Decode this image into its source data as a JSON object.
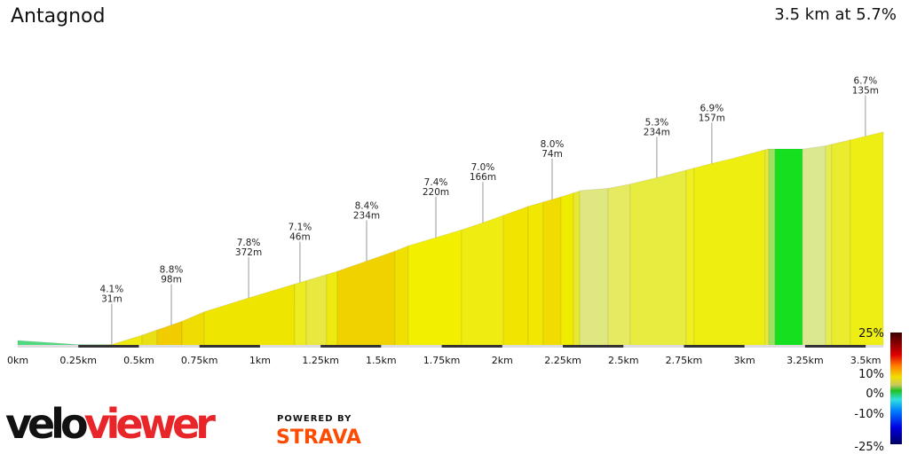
{
  "header": {
    "title": "Antagnod",
    "summary": "3.5 km at 5.7%"
  },
  "chart_data": {
    "type": "area",
    "xlabel": "",
    "ylabel": "",
    "xlim": [
      0,
      3.5
    ],
    "x_ticks": [
      "0km",
      "0.25km",
      "0.5km",
      "0.75km",
      "1km",
      "1.25km",
      "1.5km",
      "1.75km",
      "2km",
      "2.25km",
      "2.5km",
      "2.75km",
      "3km",
      "3.25km",
      "3.5km"
    ],
    "profile": [
      [
        0,
        5
      ],
      [
        0.257,
        1
      ],
      [
        0.385,
        1
      ],
      [
        0.513,
        10
      ],
      [
        0.678,
        23
      ],
      [
        0.77,
        32
      ],
      [
        0.953,
        45
      ],
      [
        1.143,
        58
      ],
      [
        1.319,
        70
      ],
      [
        1.557,
        89
      ],
      [
        1.612,
        94
      ],
      [
        1.832,
        109
      ],
      [
        1.924,
        116
      ],
      [
        2.107,
        131
      ],
      [
        2.243,
        140
      ],
      [
        2.327,
        146
      ],
      [
        2.437,
        148
      ],
      [
        2.528,
        152
      ],
      [
        2.638,
        158
      ],
      [
        2.792,
        167
      ],
      [
        2.858,
        171
      ],
      [
        2.95,
        176
      ],
      [
        3.096,
        185
      ],
      [
        3.243,
        185
      ],
      [
        3.335,
        188
      ],
      [
        3.445,
        194
      ],
      [
        3.573,
        201
      ]
    ],
    "segments": [
      [
        0,
        "#52d97f"
      ],
      [
        0.257,
        "#1db81d"
      ],
      [
        0.385,
        "#eeea10"
      ],
      [
        0.513,
        "#e8e015"
      ],
      [
        0.575,
        "#f0cc00"
      ],
      [
        0.678,
        "#efdc00"
      ],
      [
        0.77,
        "#eee500"
      ],
      [
        1.143,
        "#ecec20"
      ],
      [
        1.191,
        "#e8e840"
      ],
      [
        1.275,
        "#eeea10"
      ],
      [
        1.319,
        "#efd200"
      ],
      [
        1.557,
        "#efe000"
      ],
      [
        1.612,
        "#f2f000"
      ],
      [
        1.832,
        "#eeec10"
      ],
      [
        2.005,
        "#f0e400"
      ],
      [
        2.107,
        "#f0e800"
      ],
      [
        2.169,
        "#f0dc00"
      ],
      [
        2.243,
        "#f0ec00"
      ],
      [
        2.294,
        "#e8e830"
      ],
      [
        2.32,
        "#dfe880"
      ],
      [
        2.437,
        "#e6ea60"
      ],
      [
        2.528,
        "#e8ec40"
      ],
      [
        2.759,
        "#eeee20"
      ],
      [
        2.792,
        "#eeee10"
      ],
      [
        3.085,
        "#e6ea40"
      ],
      [
        3.1,
        "#9ee060"
      ],
      [
        3.126,
        "#14e020"
      ],
      [
        3.239,
        "#dce890"
      ],
      [
        3.335,
        "#e6ec50"
      ],
      [
        3.36,
        "#eaec30"
      ],
      [
        3.437,
        "#eeee15"
      ],
      [
        3.573,
        null
      ]
    ],
    "annotations": [
      {
        "km": 0.388,
        "grade": "4.1%",
        "length": "31m"
      },
      {
        "km": 0.634,
        "grade": "8.8%",
        "length": "98m"
      },
      {
        "km": 0.953,
        "grade": "7.8%",
        "length": "372m"
      },
      {
        "km": 1.165,
        "grade": "7.1%",
        "length": "46m"
      },
      {
        "km": 1.44,
        "grade": "8.4%",
        "length": "234m"
      },
      {
        "km": 1.726,
        "grade": "7.4%",
        "length": "220m"
      },
      {
        "km": 1.92,
        "grade": "7.0%",
        "length": "166m"
      },
      {
        "km": 2.206,
        "grade": "8.0%",
        "length": "74m"
      },
      {
        "km": 2.638,
        "grade": "5.3%",
        "length": "234m"
      },
      {
        "km": 2.865,
        "grade": "6.9%",
        "length": "157m"
      },
      {
        "km": 3.499,
        "grade": "6.7%",
        "length": "135m"
      }
    ],
    "gradient_legend": {
      "labels": [
        "25%",
        "10%",
        "0%",
        "-10%",
        "-25%"
      ],
      "colors": [
        "#3a0000",
        "#8b0000",
        "#e00000",
        "#ff8000",
        "#f0e000",
        "#c8d060",
        "#20c020",
        "#30e0e0",
        "#0080ff",
        "#0000e0",
        "#000060"
      ]
    }
  },
  "branding": {
    "logo_a": "velo",
    "logo_b": "viewer",
    "powered_by": "POWERED BY",
    "strava": "STRAVA"
  }
}
